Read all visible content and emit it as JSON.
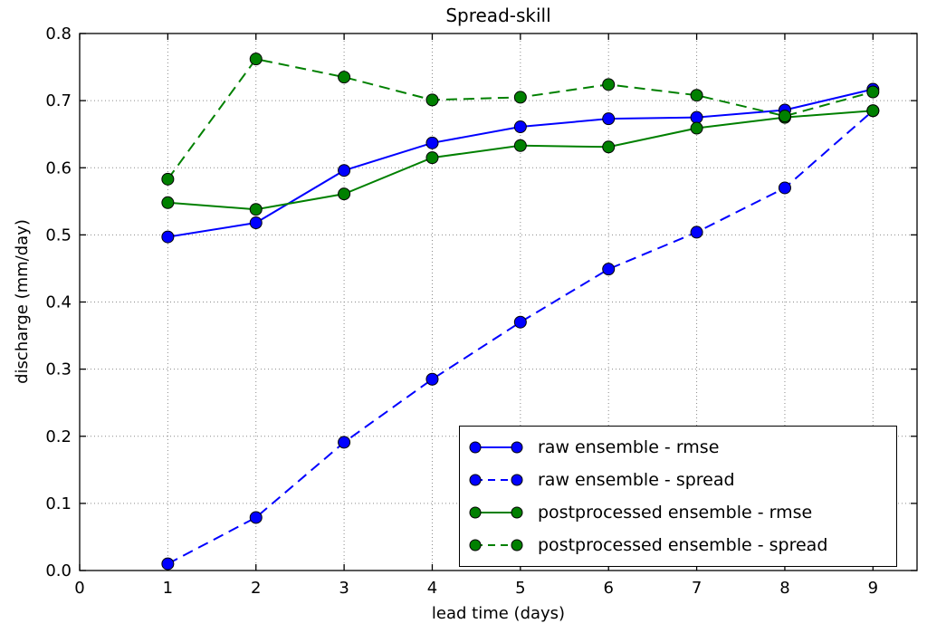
{
  "chart_data": {
    "type": "line",
    "title": "Spread-skill",
    "xlabel": "lead time (days)",
    "ylabel": "discharge (mm/day)",
    "xlim": [
      0,
      9.5
    ],
    "ylim": [
      0.0,
      0.8
    ],
    "grid": true,
    "legend_position": "lower right",
    "xticks": [
      {
        "v": 0,
        "label": "0"
      },
      {
        "v": 1,
        "label": "1"
      },
      {
        "v": 2,
        "label": "2"
      },
      {
        "v": 3,
        "label": "3"
      },
      {
        "v": 4,
        "label": "4"
      },
      {
        "v": 5,
        "label": "5"
      },
      {
        "v": 6,
        "label": "6"
      },
      {
        "v": 7,
        "label": "7"
      },
      {
        "v": 8,
        "label": "8"
      },
      {
        "v": 9,
        "label": "9"
      }
    ],
    "yticks": [
      {
        "v": 0.0,
        "label": "0.0"
      },
      {
        "v": 0.1,
        "label": "0.1"
      },
      {
        "v": 0.2,
        "label": "0.2"
      },
      {
        "v": 0.3,
        "label": "0.3"
      },
      {
        "v": 0.4,
        "label": "0.4"
      },
      {
        "v": 0.5,
        "label": "0.5"
      },
      {
        "v": 0.6,
        "label": "0.6"
      },
      {
        "v": 0.7,
        "label": "0.7"
      },
      {
        "v": 0.8,
        "label": "0.8"
      }
    ],
    "x": [
      1,
      2,
      3,
      4,
      5,
      6,
      7,
      8,
      9
    ],
    "series": [
      {
        "name": "raw ensemble - rmse",
        "color": "#0000ff",
        "style": "solid",
        "marker": "circle",
        "values": [
          0.497,
          0.518,
          0.596,
          0.637,
          0.661,
          0.673,
          0.675,
          0.686,
          0.717
        ]
      },
      {
        "name": "raw ensemble - spread",
        "color": "#0000ff",
        "style": "dashed",
        "marker": "circle",
        "values": [
          0.01,
          0.079,
          0.191,
          0.285,
          0.37,
          0.449,
          0.504,
          0.57,
          0.685
        ]
      },
      {
        "name": "postprocessed ensemble - rmse",
        "color": "#008000",
        "style": "solid",
        "marker": "circle",
        "values": [
          0.548,
          0.538,
          0.561,
          0.615,
          0.633,
          0.631,
          0.659,
          0.675,
          0.685
        ]
      },
      {
        "name": "postprocessed ensemble - spread",
        "color": "#008000",
        "style": "dashed",
        "marker": "circle",
        "values": [
          0.583,
          0.762,
          0.735,
          0.701,
          0.705,
          0.724,
          0.708,
          0.677,
          0.713
        ]
      }
    ],
    "colors": {
      "background": "#ffffff",
      "axis": "#000000",
      "grid": "#8a8a8a",
      "marker_edge": "#000000",
      "legend_border": "#000000"
    }
  }
}
